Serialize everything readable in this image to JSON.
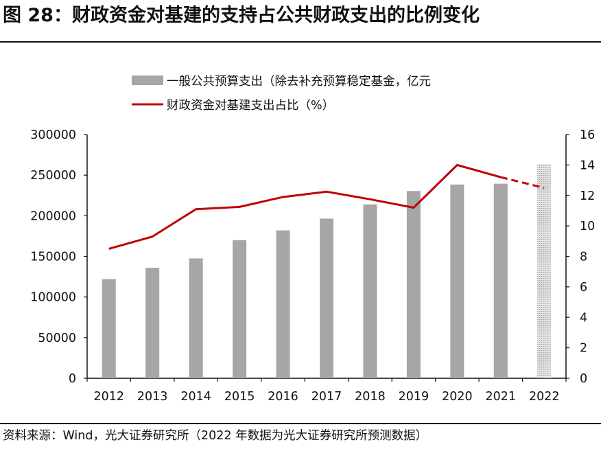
{
  "header": {
    "title": "图 28：财政资金对基建的支持占公共财政支出的比例变化"
  },
  "footer": {
    "source": "资料来源：Wind，光大证券研究所（2022 年数据为光大证券研究所预测数据）"
  },
  "colors": {
    "bar": "#a6a6a6",
    "bar_forecast": "#d0d0d0",
    "line": "#c00000",
    "axis": "#111111"
  },
  "chart_data": {
    "type": "bar+line",
    "title": "财政资金对基建的支持占公共财政支出的比例变化",
    "categories": [
      "2012",
      "2013",
      "2014",
      "2015",
      "2016",
      "2017",
      "2018",
      "2019",
      "2020",
      "2021",
      "2022"
    ],
    "series": [
      {
        "name": "一般公共预算支出（除去补充预算稳定基金，亿元",
        "type": "bar",
        "axis": "left",
        "values": [
          122000,
          136000,
          147500,
          170000,
          182000,
          196500,
          214000,
          230500,
          238500,
          239500,
          263500
        ],
        "forecast_from": "2022"
      },
      {
        "name": "财政资金对基建支出占比（%）",
        "type": "line",
        "axis": "right",
        "values": [
          8.5,
          9.3,
          11.1,
          11.25,
          11.9,
          12.25,
          11.75,
          11.2,
          14.0,
          13.2,
          12.5
        ],
        "dashed_from": "2021"
      }
    ],
    "y_left": {
      "min": 0,
      "max": 300000,
      "step": 50000,
      "ticks": [
        "0",
        "50000",
        "100000",
        "150000",
        "200000",
        "250000",
        "300000"
      ]
    },
    "y_right": {
      "min": 0,
      "max": 16,
      "step": 2,
      "ticks": [
        "0",
        "2",
        "4",
        "6",
        "8",
        "10",
        "12",
        "14",
        "16"
      ]
    },
    "legend": {
      "position": "top"
    },
    "grid": false
  }
}
